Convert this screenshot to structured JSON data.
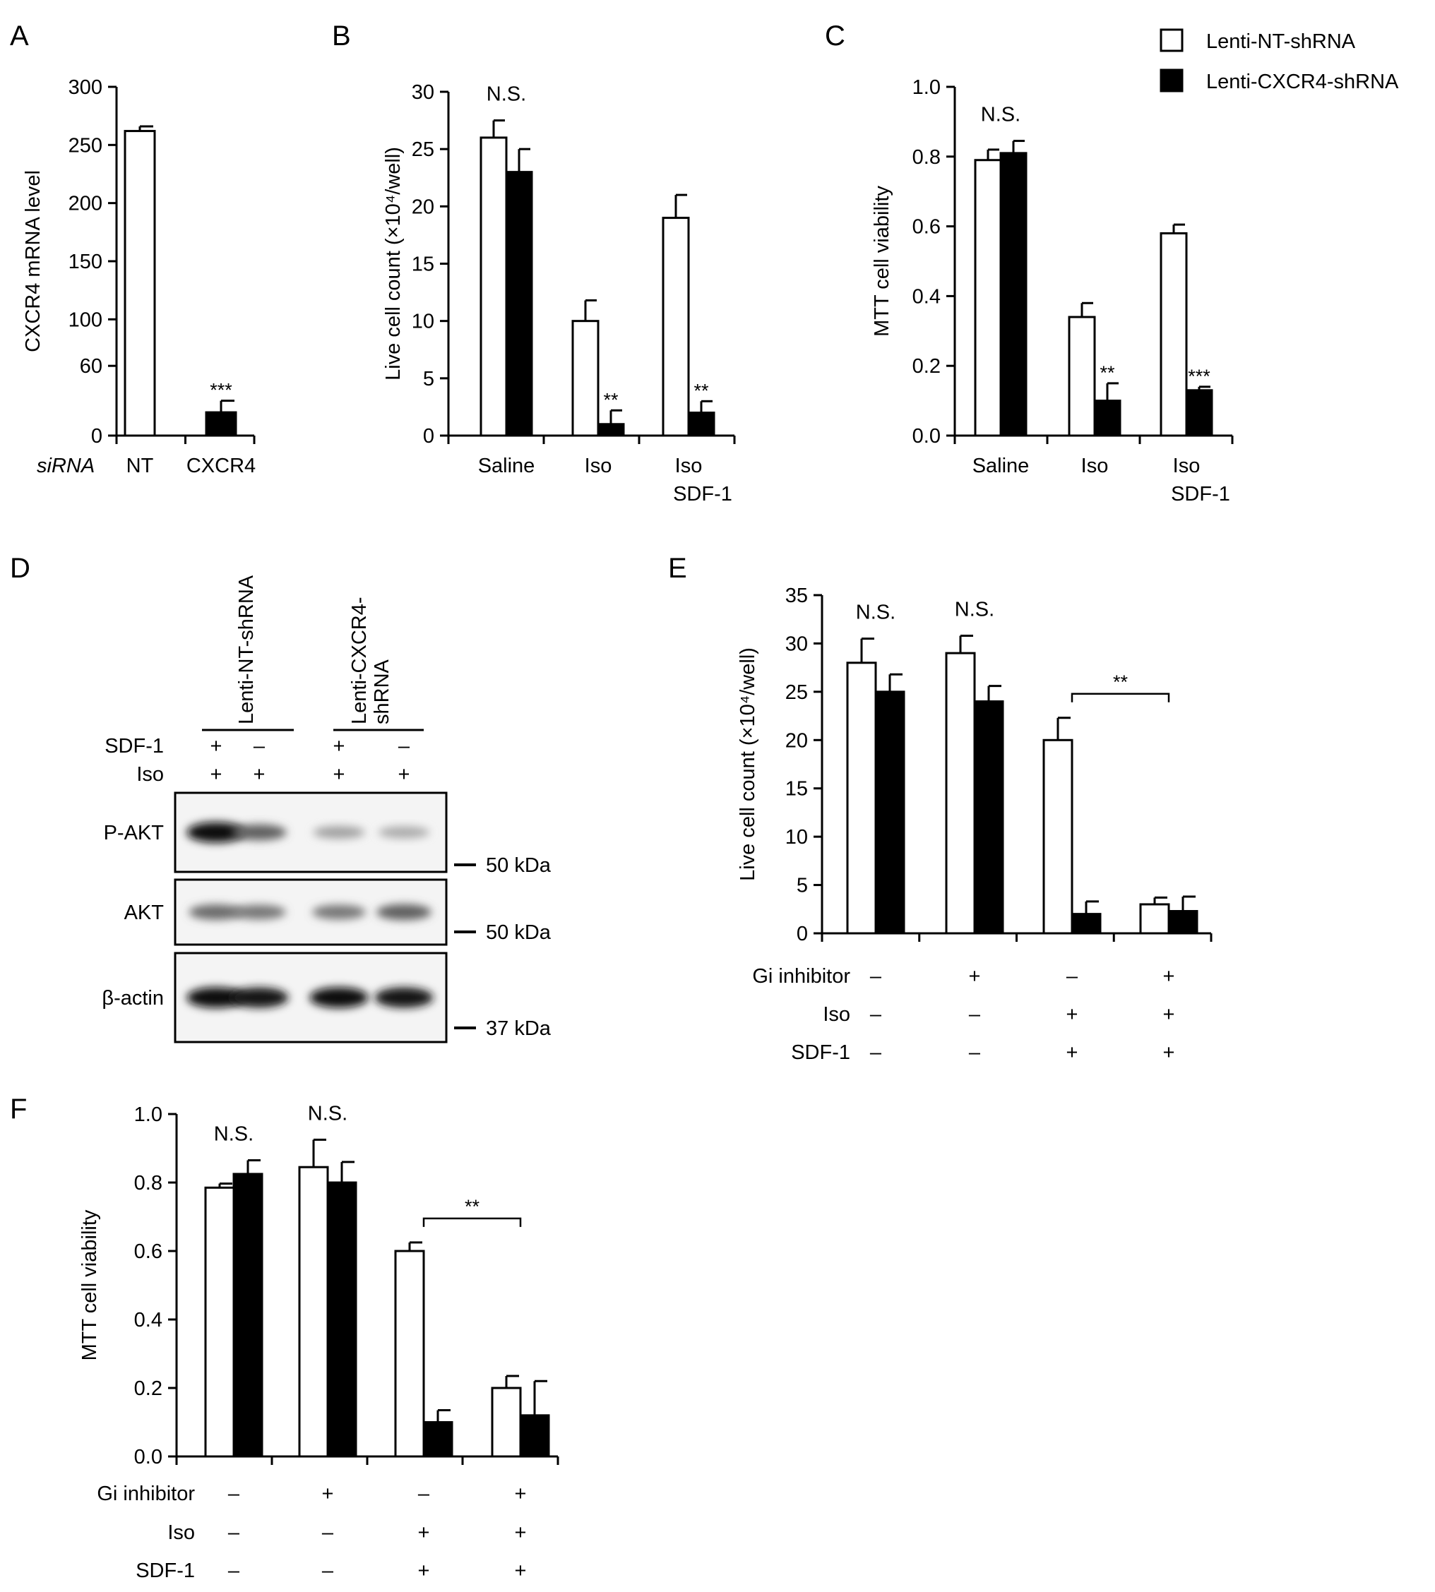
{
  "colors": {
    "nt": "#ffffff",
    "cxcr4": "#000000"
  },
  "legend": {
    "entries": [
      {
        "label": "Lenti-NT-shRNA",
        "color": "#ffffff"
      },
      {
        "label": "Lenti-CXCR4-shRNA",
        "color": "#000000"
      }
    ]
  },
  "chart_data": [
    {
      "panel": "A",
      "type": "bar",
      "ylabel": "CXCR4 mRNA level",
      "ylim": [
        0,
        300
      ],
      "yticks": [
        "0",
        "60",
        "100",
        "150",
        "200",
        "250",
        "300"
      ],
      "xlabel": "siRNA",
      "categories": [
        "NT",
        "CXCR4"
      ],
      "values": [
        262,
        20
      ],
      "errors": [
        4,
        10
      ],
      "fills": [
        "#ffffff",
        "#000000"
      ],
      "annotations": [
        {
          "category": 1,
          "text": "***"
        }
      ]
    },
    {
      "panel": "B",
      "type": "bar",
      "ylabel": "Live cell count (×10⁴/well)",
      "ylim": [
        0,
        30
      ],
      "yticks": [
        "0",
        "5",
        "10",
        "15",
        "20",
        "25",
        "30"
      ],
      "categories": [
        "Saline",
        "Iso",
        "Iso\nSDF-1"
      ],
      "series": [
        {
          "name": "Lenti-NT-shRNA",
          "values": [
            26,
            10,
            19
          ],
          "errors": [
            1.5,
            1.8,
            2.0
          ]
        },
        {
          "name": "Lenti-CXCR4-shRNA",
          "values": [
            23,
            1,
            2
          ],
          "errors": [
            2.0,
            1.2,
            1.0
          ]
        }
      ],
      "annotations": [
        {
          "category": 0,
          "text": "N.S."
        },
        {
          "category": 1,
          "series": 1,
          "text": "**"
        },
        {
          "category": 2,
          "series": 1,
          "text": "**"
        }
      ]
    },
    {
      "panel": "C",
      "type": "bar",
      "ylabel": "MTT cell viability",
      "ylim": [
        0,
        1
      ],
      "yticks": [
        "0.0",
        "0.2",
        "0.4",
        "0.6",
        "0.8",
        "1.0"
      ],
      "categories": [
        "Saline",
        "Iso",
        "Iso\nSDF-1"
      ],
      "series": [
        {
          "name": "Lenti-NT-shRNA",
          "values": [
            0.79,
            0.34,
            0.58
          ],
          "errors": [
            0.03,
            0.04,
            0.025
          ]
        },
        {
          "name": "Lenti-CXCR4-shRNA",
          "values": [
            0.81,
            0.1,
            0.13
          ],
          "errors": [
            0.035,
            0.05,
            0.01
          ]
        }
      ],
      "annotations": [
        {
          "category": 0,
          "text": "N.S."
        },
        {
          "category": 1,
          "series": 1,
          "text": "**"
        },
        {
          "category": 2,
          "series": 1,
          "text": "***"
        }
      ]
    },
    {
      "panel": "E",
      "type": "bar",
      "ylabel": "Live cell count (×10⁴/well)",
      "ylim": [
        0,
        35
      ],
      "yticks": [
        "0",
        "5",
        "10",
        "15",
        "20",
        "25",
        "30",
        "35"
      ],
      "conditions": [
        {
          "label": "Gi inhibitor",
          "values": [
            "–",
            "+",
            "–",
            "+"
          ]
        },
        {
          "label": "Iso",
          "values": [
            "–",
            "–",
            "+",
            "+"
          ]
        },
        {
          "label": "SDF-1",
          "values": [
            "–",
            "–",
            "+",
            "+"
          ]
        }
      ],
      "series": [
        {
          "name": "Lenti-NT-shRNA",
          "values": [
            28,
            29,
            20,
            3
          ],
          "errors": [
            2.5,
            1.8,
            2.3,
            0.7
          ]
        },
        {
          "name": "Lenti-CXCR4-shRNA",
          "values": [
            25,
            24,
            2,
            2.3
          ],
          "errors": [
            1.8,
            1.6,
            1.3,
            1.5
          ]
        }
      ],
      "annotations": [
        {
          "category": 0,
          "text": "N.S."
        },
        {
          "category": 1,
          "text": "N.S."
        },
        {
          "bracket": [
            2,
            3
          ],
          "text": "**"
        }
      ]
    },
    {
      "panel": "F",
      "type": "bar",
      "ylabel": "MTT cell viability",
      "ylim": [
        0,
        1
      ],
      "yticks": [
        "0.0",
        "0.2",
        "0.4",
        "0.6",
        "0.8",
        "1.0"
      ],
      "conditions": [
        {
          "label": "Gi inhibitor",
          "values": [
            "–",
            "+",
            "–",
            "+"
          ]
        },
        {
          "label": "Iso",
          "values": [
            "–",
            "–",
            "+",
            "+"
          ]
        },
        {
          "label": "SDF-1",
          "values": [
            "–",
            "–",
            "+",
            "+"
          ]
        }
      ],
      "series": [
        {
          "name": "Lenti-NT-shRNA",
          "values": [
            0.785,
            0.845,
            0.6,
            0.2
          ],
          "errors": [
            0.012,
            0.08,
            0.025,
            0.035
          ]
        },
        {
          "name": "Lenti-CXCR4-shRNA",
          "values": [
            0.825,
            0.8,
            0.1,
            0.12
          ],
          "errors": [
            0.04,
            0.06,
            0.035,
            0.1
          ]
        }
      ],
      "annotations": [
        {
          "category": 0,
          "text": "N.S."
        },
        {
          "category": 1,
          "text": "N.S."
        },
        {
          "bracket": [
            2,
            3
          ],
          "text": "**"
        }
      ]
    }
  ],
  "blot": {
    "panel": "D",
    "lane_groups": [
      "Lenti-NT-shRNA",
      "Lenti-CXCR4-\nshRNA"
    ],
    "conditions": [
      {
        "label": "SDF-1",
        "values": [
          "+",
          "–",
          "+",
          "–"
        ]
      },
      {
        "label": "Iso",
        "values": [
          "+",
          "+",
          "+",
          "+"
        ]
      }
    ],
    "rows": [
      {
        "label": "P-AKT",
        "marker": "50 kDa",
        "intensities": [
          0.95,
          0.6,
          0.32,
          0.28
        ]
      },
      {
        "label": "AKT",
        "marker": "50 kDa",
        "intensities": [
          0.55,
          0.5,
          0.5,
          0.6
        ]
      },
      {
        "label": "β-actin",
        "marker": "37 kDa",
        "intensities": [
          0.95,
          0.92,
          0.95,
          0.93
        ]
      }
    ]
  }
}
